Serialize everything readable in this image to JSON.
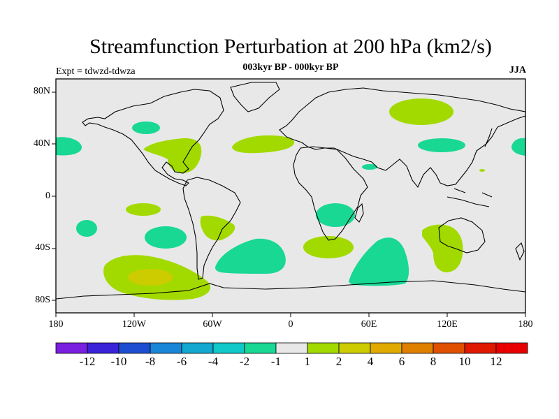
{
  "title": "Streamfunction Perturbation at 200 hPa (km2/s)",
  "subtitle": "003kyr BP - 000kyr BP",
  "expt_label": "Expt = tdwzd-tdwza",
  "season": "JJA",
  "lat_ticks": [
    "80N",
    "40N",
    "0",
    "40S",
    "80S"
  ],
  "lon_ticks": [
    "180",
    "120W",
    "60W",
    "0",
    "60E",
    "120E",
    "180"
  ],
  "colorbar": {
    "labels": [
      "-12",
      "-10",
      "-8",
      "-6",
      "-4",
      "-2",
      "-1",
      "1",
      "2",
      "4",
      "6",
      "8",
      "10",
      "12"
    ],
    "colors": [
      "#7a1fe0",
      "#3a22d8",
      "#1e4ed0",
      "#1a86d8",
      "#12a8cf",
      "#10c8c8",
      "#18d894",
      "#e8e8e8",
      "#a2da00",
      "#cccc00",
      "#e0aa00",
      "#e08000",
      "#e05000",
      "#e01800",
      "#e80000"
    ]
  },
  "map": {
    "background": "#e8e8e8",
    "positive_color": "#a2da00",
    "negative_color": "#18d894",
    "strong_color": "#cccc00"
  }
}
